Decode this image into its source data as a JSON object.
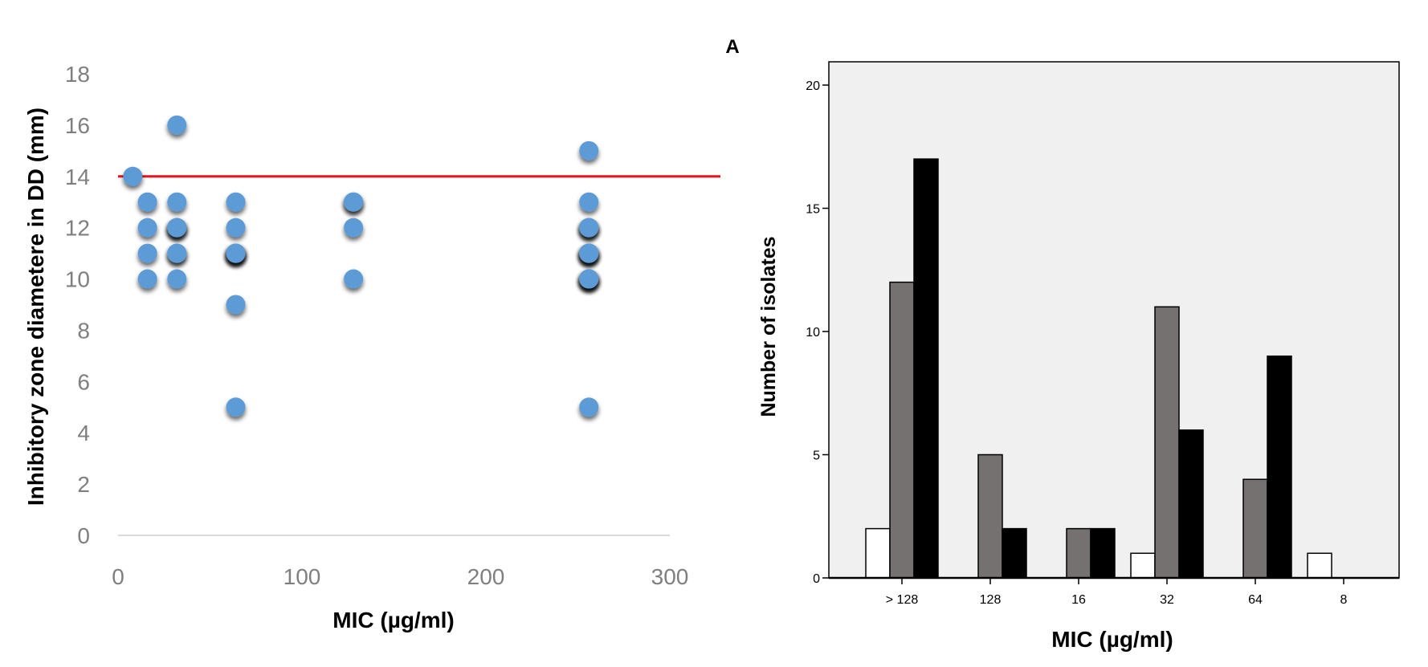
{
  "chart_data": [
    {
      "type": "scatter",
      "title": "",
      "xlabel": "MIC (µg/ml)",
      "ylabel": "Inhibitory zone diametere in DD (mm)",
      "xlim": [
        0,
        300
      ],
      "ylim": [
        0,
        18
      ],
      "x_ticks": [
        "0",
        "100",
        "200",
        "300"
      ],
      "y_ticks": [
        "0",
        "2",
        "4",
        "6",
        "8",
        "10",
        "12",
        "14",
        "16",
        "18"
      ],
      "grid": false,
      "reference_line": {
        "y": 14,
        "color": "#e8141b"
      },
      "point_color": "#5b9bd5",
      "series": [
        {
          "x": [
            8,
            16,
            16,
            16,
            16,
            32,
            32,
            32,
            32,
            32,
            32,
            32,
            32,
            64,
            64,
            64,
            64,
            64,
            64,
            64,
            64,
            128,
            128,
            128,
            128,
            256,
            256,
            256,
            256,
            256,
            256,
            256,
            256,
            256,
            256,
            256,
            256,
            256,
            256
          ],
          "y": [
            14,
            13,
            12,
            11,
            10,
            16,
            13,
            12,
            12,
            12,
            11,
            11,
            10,
            13,
            12,
            11,
            11,
            11,
            11,
            9,
            5,
            13,
            13,
            12,
            10,
            15,
            13,
            12,
            12,
            12,
            11,
            11,
            11,
            11,
            10,
            10,
            10,
            10,
            5
          ]
        }
      ]
    },
    {
      "type": "bar",
      "panel_label": "A",
      "title": "",
      "xlabel": "MIC (µg/ml)",
      "ylabel": "Number of isolates",
      "categories": [
        "> 128",
        "128",
        "16",
        "32",
        "64",
        "8"
      ],
      "ylim": [
        0,
        21
      ],
      "y_ticks": [
        "0",
        "5",
        "10",
        "15",
        "20"
      ],
      "background": "#f0f0f0",
      "series": [
        {
          "color": "#ffffff",
          "values": [
            2,
            0,
            0,
            1,
            0,
            1
          ]
        },
        {
          "color": "#767171",
          "values": [
            12,
            5,
            2,
            11,
            4,
            0
          ]
        },
        {
          "color": "#000000",
          "values": [
            17,
            2,
            2,
            6,
            9,
            0
          ]
        }
      ]
    }
  ]
}
